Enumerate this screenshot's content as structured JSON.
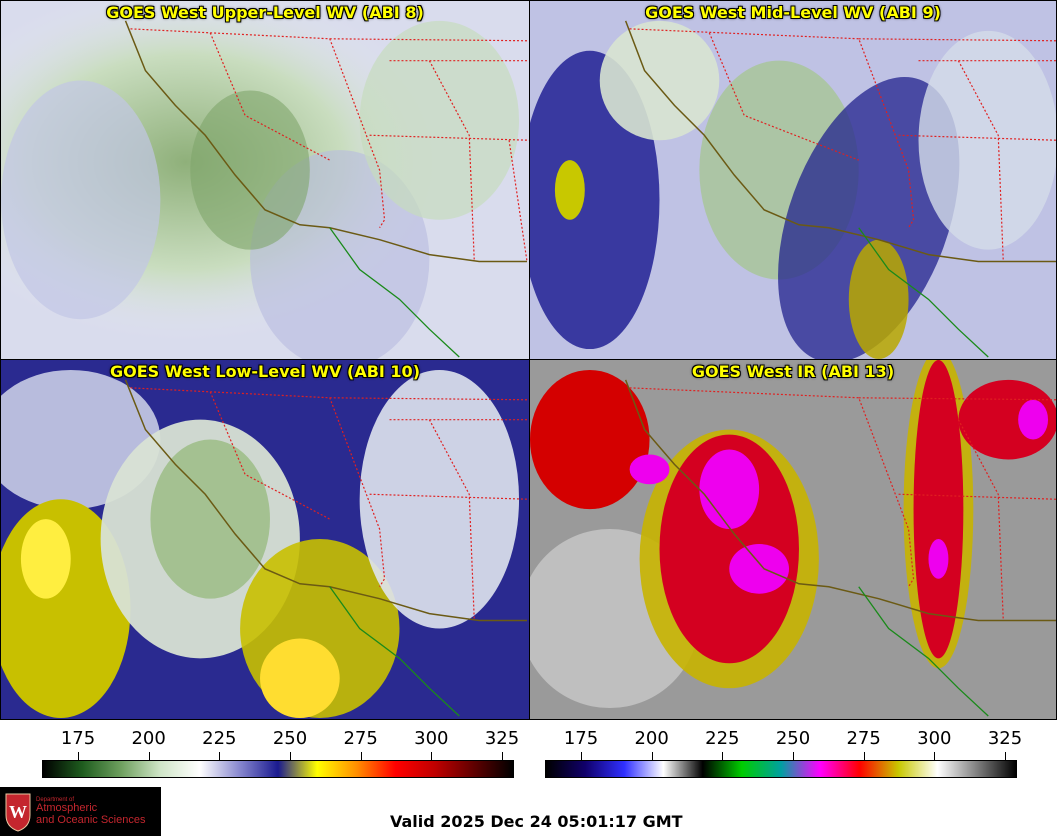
{
  "panels": {
    "upper": {
      "title": "GOES West Upper-Level WV (ABI 8)"
    },
    "mid": {
      "title": "GOES West Mid-Level WV (ABI 9)"
    },
    "low": {
      "title": "GOES West Low-Level WV (ABI 10)"
    },
    "ir": {
      "title": "GOES West IR (ABI 13)"
    }
  },
  "colorbar_wv": {
    "ticks": [
      "175",
      "200",
      "225",
      "250",
      "275",
      "300",
      "325"
    ],
    "colors": [
      "#000000",
      "#1e5c1e",
      "#6fa05f",
      "#d0e6c8",
      "#ffffff",
      "#8a8ad0",
      "#1a1a90",
      "#ffff00",
      "#ff9000",
      "#ff0000",
      "#c00000",
      "#600000",
      "#000000"
    ]
  },
  "colorbar_ir": {
    "ticks": [
      "175",
      "200",
      "225",
      "250",
      "275",
      "300",
      "325"
    ],
    "colors": [
      "#000000",
      "#10006a",
      "#3030ff",
      "#ffffff",
      "#000000",
      "#00cc00",
      "#00a0a0",
      "#ff00ff",
      "#ff0000",
      "#c8c800",
      "#ffffff",
      "#808080",
      "#000000"
    ]
  },
  "logo": {
    "dept": "Department of",
    "line1": "Atmospheric",
    "line2": "and Oceanic Sciences"
  },
  "valid_text": "Valid 2025 Dec 24 05:01:17 GMT"
}
